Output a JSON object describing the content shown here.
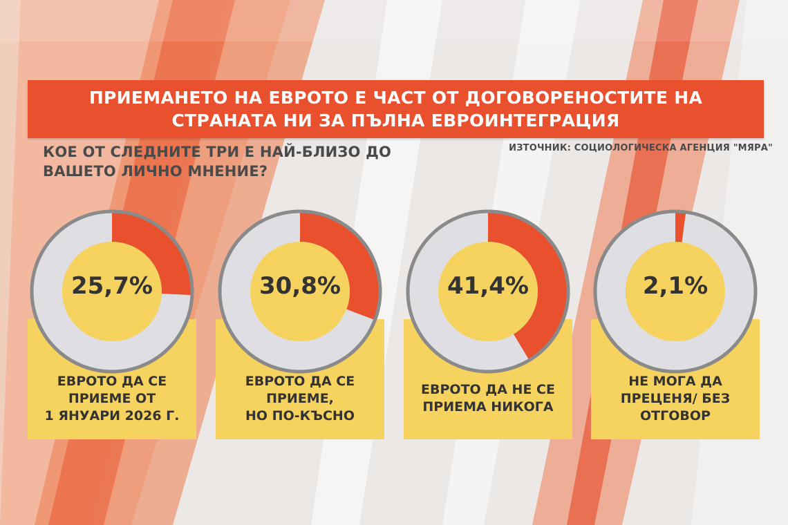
{
  "title": {
    "line1": "ПРИЕМАНЕТО НА ЕВРОТО Е ЧАСТ ОТ ДОГОВОРЕНОСТИТЕ НА",
    "line2": "СТРАНАТА НИ ЗА ПЪЛНА ЕВРОИНТЕГРАЦИЯ"
  },
  "question": {
    "line1": "КОЕ ОТ СЛЕДНИТЕ ТРИ Е НАЙ-БЛИЗО ДО",
    "line2": "ВАШЕТО ЛИЧНО МНЕНИЕ?"
  },
  "source": "ИЗТОЧНИК: СОЦИОЛОГИЧЕСКА АГЕНЦИЯ \"МЯРА\"",
  "colors": {
    "accent": "#e8502e",
    "yellow": "#f6d25e",
    "ring_gray": "#8a8a8a",
    "track_light": "#dfdfe3"
  },
  "chart_data": {
    "type": "pie",
    "variant": "donut-per-category",
    "unit": "%",
    "items": [
      {
        "value": 25.7,
        "value_label": "25,7%",
        "label_lines": [
          "ЕВРОТО ДА СЕ",
          "ПРИЕМЕ ОТ",
          "1 ЯНУАРИ 2026 Г."
        ]
      },
      {
        "value": 30.8,
        "value_label": "30,8%",
        "label_lines": [
          "ЕВРОТО ДА СЕ",
          "ПРИЕМЕ,",
          "НО ПО-КЪСНО"
        ]
      },
      {
        "value": 41.4,
        "value_label": "41,4%",
        "label_lines": [
          "ЕВРОТО ДА НЕ СЕ",
          "ПРИЕМА НИКОГА"
        ]
      },
      {
        "value": 2.1,
        "value_label": "2,1%",
        "label_lines": [
          "НЕ МОГА ДА",
          "ПРЕЦЕНЯ/ БЕЗ",
          "ОТГОВОР"
        ]
      }
    ]
  }
}
